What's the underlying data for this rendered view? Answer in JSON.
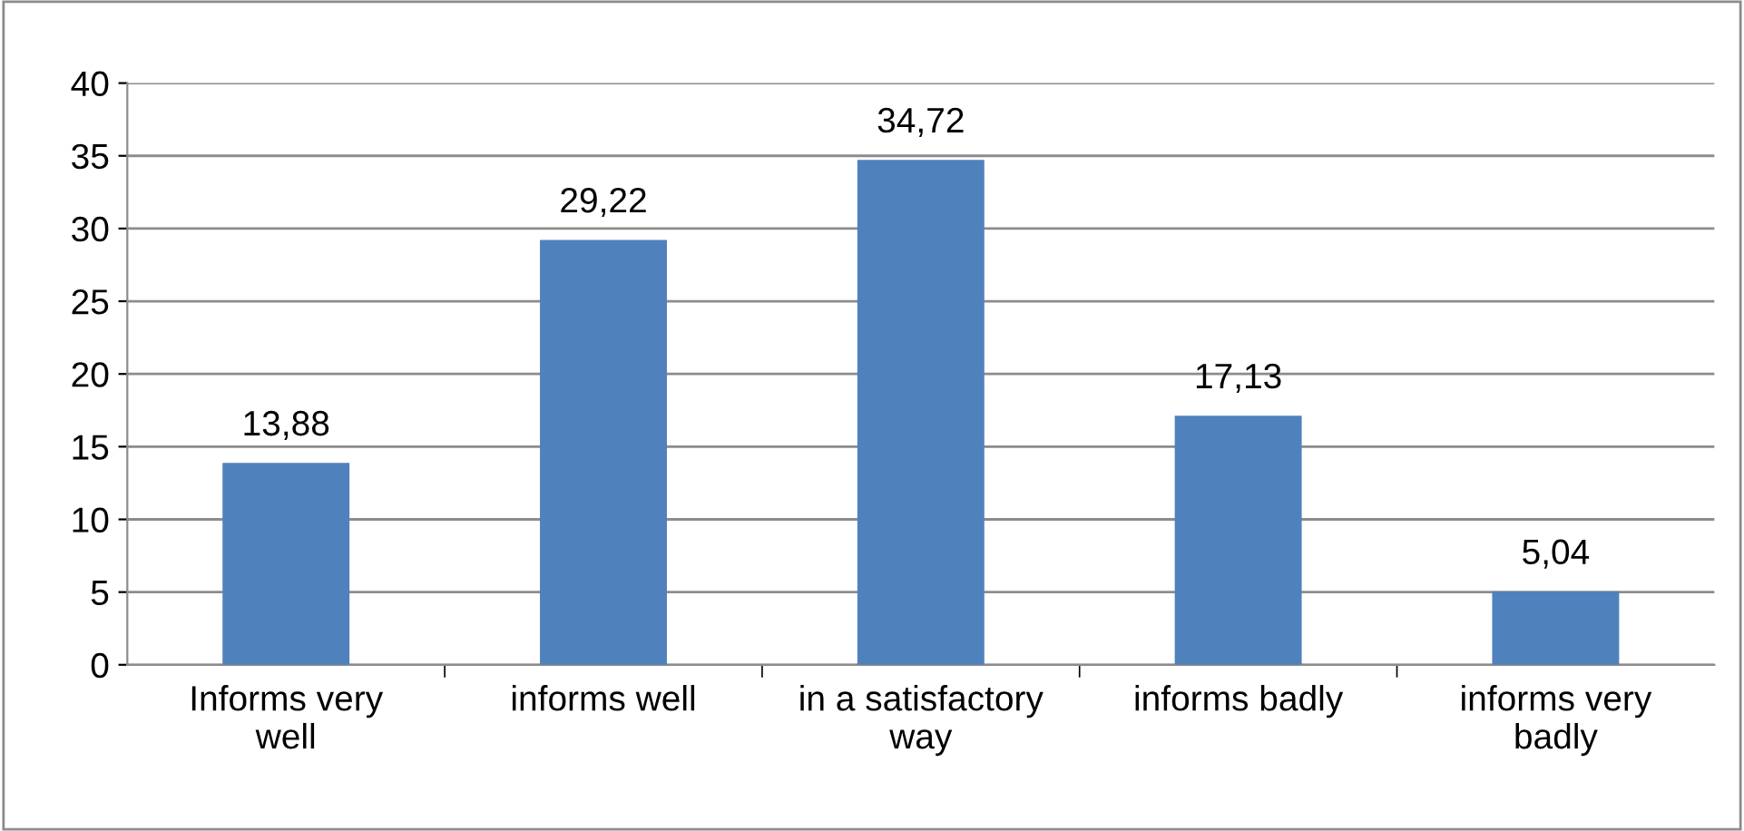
{
  "chart_data": {
    "type": "bar",
    "categories": [
      "Informs very well",
      "informs well",
      "in a satisfactory way",
      "informs badly",
      "informs very badly"
    ],
    "values": [
      13.88,
      29.22,
      34.72,
      17.13,
      5.04
    ],
    "value_labels": [
      "13,88",
      "29,22",
      "34,72",
      "17,13",
      "5,04"
    ],
    "color": "#4f81bd",
    "ylim": [
      0,
      40
    ],
    "yticks": [
      0,
      5,
      10,
      15,
      20,
      25,
      30,
      35,
      40
    ],
    "grid": "y",
    "legend": false
  }
}
